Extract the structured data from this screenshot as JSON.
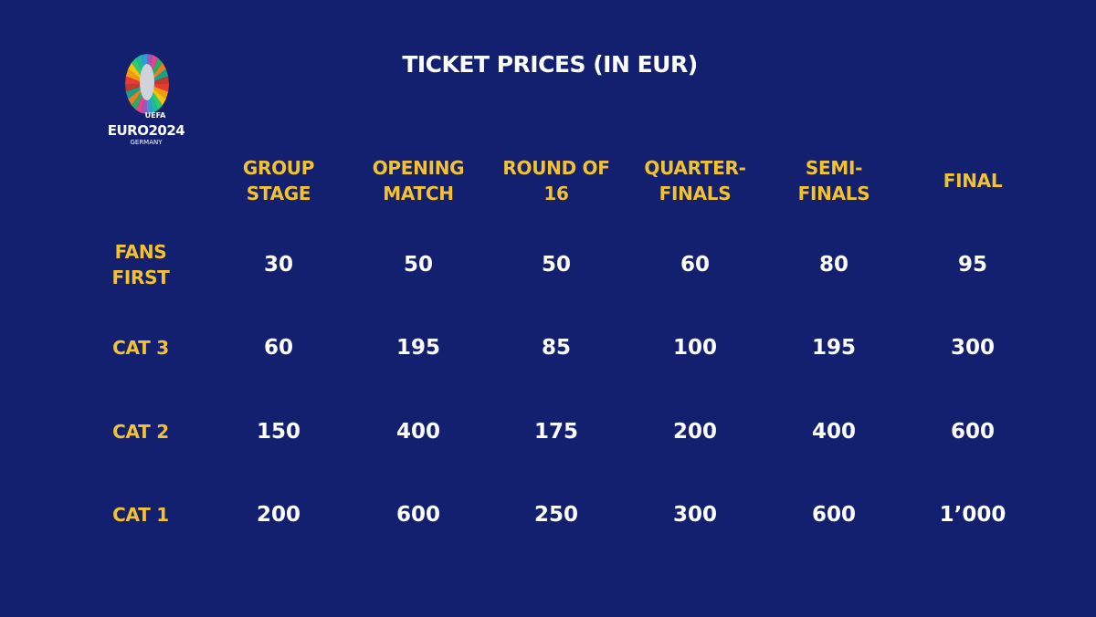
{
  "title": "TICKET PRICES (IN EUR)",
  "logo": {
    "line1": "UEFA",
    "line2": "EURO2024",
    "line3": "GERMANY"
  },
  "colors": {
    "background": "#13206f",
    "header": "#f2c230",
    "value": "#ffffff"
  },
  "table": {
    "columns": [
      [
        "GROUP",
        "STAGE"
      ],
      [
        "OPENING",
        "MATCH"
      ],
      [
        "ROUND OF",
        "16"
      ],
      [
        "QUARTER-",
        "FINALS"
      ],
      [
        "SEMI-",
        "FINALS"
      ],
      [
        "FINAL"
      ]
    ],
    "rows": [
      {
        "label": [
          "FANS",
          "FIRST"
        ],
        "values": [
          "30",
          "50",
          "50",
          "60",
          "80",
          "95"
        ]
      },
      {
        "label": [
          "CAT 3"
        ],
        "values": [
          "60",
          "195",
          "85",
          "100",
          "195",
          "300"
        ]
      },
      {
        "label": [
          "CAT 2"
        ],
        "values": [
          "150",
          "400",
          "175",
          "200",
          "400",
          "600"
        ]
      },
      {
        "label": [
          "CAT 1"
        ],
        "values": [
          "200",
          "600",
          "250",
          "300",
          "600",
          "1’000"
        ]
      }
    ]
  }
}
